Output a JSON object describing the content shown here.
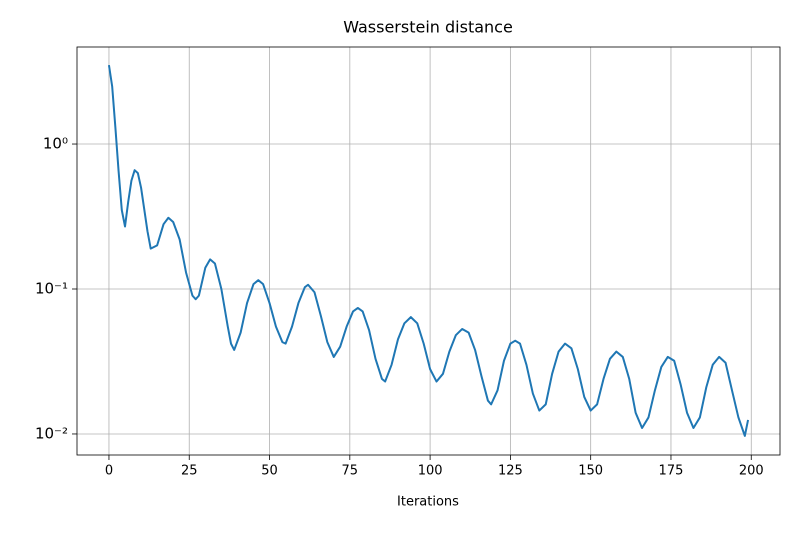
{
  "chart_data": {
    "type": "line",
    "title": "Wasserstein distance",
    "xlabel": "Iterations",
    "x": [
      0,
      1,
      2,
      3,
      4,
      5,
      6,
      7,
      8,
      9,
      10,
      12,
      13,
      15,
      17,
      18.5,
      20,
      22,
      24,
      26,
      27,
      28,
      30,
      31.5,
      33,
      35,
      37,
      38,
      39,
      41,
      43,
      45,
      46.5,
      48,
      50,
      52,
      54,
      55,
      57,
      59,
      61,
      62,
      64,
      66,
      68,
      70,
      72,
      74,
      76,
      77.5,
      79,
      81,
      83,
      85,
      86,
      88,
      90,
      92,
      94,
      96,
      98,
      100,
      102,
      104,
      106,
      108,
      110,
      112,
      114,
      116,
      118,
      119,
      121,
      123,
      125,
      126.5,
      128,
      130,
      132,
      134,
      136,
      138,
      140,
      142,
      144,
      146,
      148,
      150,
      152,
      154,
      156,
      158,
      160,
      162,
      164,
      166,
      168,
      170,
      172,
      174,
      176,
      178,
      180,
      182,
      184,
      186,
      188,
      190,
      192,
      194,
      196,
      198,
      199
    ],
    "series": [
      {
        "name": "Wasserstein distance",
        "color": "#1f77b4",
        "values": [
          3.5,
          2.5,
          1.3,
          0.65,
          0.35,
          0.27,
          0.4,
          0.56,
          0.66,
          0.63,
          0.5,
          0.25,
          0.19,
          0.2,
          0.28,
          0.31,
          0.29,
          0.22,
          0.13,
          0.09,
          0.085,
          0.09,
          0.14,
          0.16,
          0.15,
          0.1,
          0.055,
          0.042,
          0.038,
          0.05,
          0.08,
          0.108,
          0.115,
          0.108,
          0.08,
          0.055,
          0.043,
          0.042,
          0.055,
          0.08,
          0.103,
          0.107,
          0.095,
          0.065,
          0.043,
          0.034,
          0.04,
          0.055,
          0.07,
          0.074,
          0.07,
          0.052,
          0.033,
          0.024,
          0.023,
          0.03,
          0.045,
          0.058,
          0.064,
          0.058,
          0.042,
          0.028,
          0.023,
          0.026,
          0.037,
          0.048,
          0.053,
          0.05,
          0.038,
          0.025,
          0.017,
          0.016,
          0.02,
          0.032,
          0.042,
          0.044,
          0.042,
          0.03,
          0.019,
          0.0145,
          0.016,
          0.026,
          0.037,
          0.042,
          0.039,
          0.028,
          0.018,
          0.0145,
          0.016,
          0.024,
          0.033,
          0.037,
          0.034,
          0.024,
          0.014,
          0.011,
          0.013,
          0.02,
          0.029,
          0.034,
          0.032,
          0.022,
          0.014,
          0.011,
          0.013,
          0.021,
          0.03,
          0.034,
          0.031,
          0.02,
          0.013,
          0.0097,
          0.0125
        ]
      }
    ],
    "xlim": [
      -9.95,
      208.95
    ],
    "xticks": [
      0,
      25,
      50,
      75,
      100,
      125,
      150,
      175,
      200
    ],
    "ylim": [
      0.00716,
      4.67
    ],
    "ylog": true,
    "yticks": [
      {
        "value": 0.01,
        "label": "10⁻²"
      },
      {
        "value": 0.1,
        "label": "10⁻¹"
      },
      {
        "value": 1,
        "label": "10⁰"
      }
    ],
    "grid": true
  }
}
